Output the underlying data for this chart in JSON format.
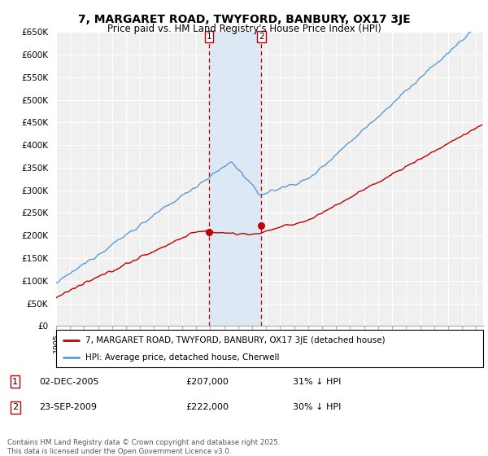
{
  "title": "7, MARGARET ROAD, TWYFORD, BANBURY, OX17 3JE",
  "subtitle": "Price paid vs. HM Land Registry's House Price Index (HPI)",
  "ylabel_ticks": [
    "£0",
    "£50K",
    "£100K",
    "£150K",
    "£200K",
    "£250K",
    "£300K",
    "£350K",
    "£400K",
    "£450K",
    "£500K",
    "£550K",
    "£600K",
    "£650K"
  ],
  "ytick_values": [
    0,
    50000,
    100000,
    150000,
    200000,
    250000,
    300000,
    350000,
    400000,
    450000,
    500000,
    550000,
    600000,
    650000
  ],
  "hpi_color": "#5b9bd5",
  "price_color": "#c00000",
  "sale1_year_float": 2005.917,
  "sale1_price": 207000,
  "sale2_year_float": 2009.667,
  "sale2_price": 222000,
  "sale1_date": "02-DEC-2005",
  "sale2_date": "23-SEP-2009",
  "sale1_pct": "31% ↓ HPI",
  "sale2_pct": "30% ↓ HPI",
  "legend_line1": "7, MARGARET ROAD, TWYFORD, BANBURY, OX17 3JE (detached house)",
  "legend_line2": "HPI: Average price, detached house, Cherwell",
  "footnote": "Contains HM Land Registry data © Crown copyright and database right 2025.\nThis data is licensed under the Open Government Licence v3.0.",
  "background_color": "#ffffff",
  "plot_bg_color": "#f0f0f0",
  "shade_color": "#dce9f5",
  "grid_color": "#ffffff"
}
